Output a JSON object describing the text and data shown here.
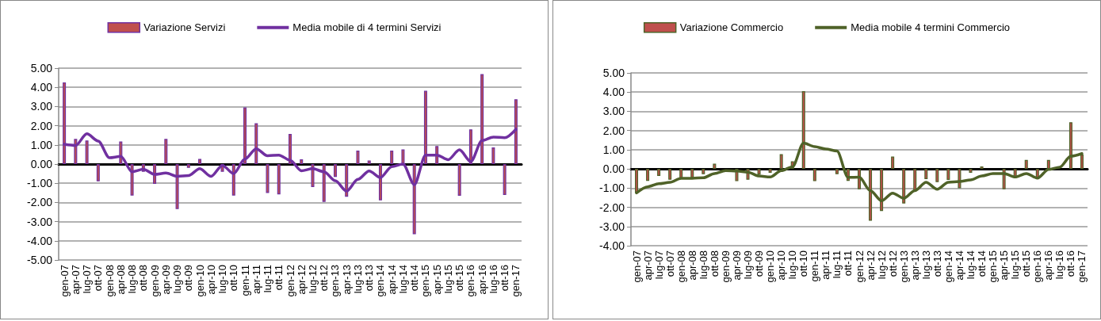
{
  "chart_data": [
    {
      "type": "bar",
      "categories": [
        "gen-07",
        "apr-07",
        "lug-07",
        "ott-07",
        "gen-08",
        "apr-08",
        "lug-08",
        "ott-08",
        "gen-09",
        "apr-09",
        "lug-09",
        "ott-09",
        "gen-10",
        "apr-10",
        "lug-10",
        "ott-10",
        "gen-11",
        "apr-11",
        "lug-11",
        "ott-11",
        "gen-12",
        "apr-12",
        "lug-12",
        "ott-12",
        "gen-13",
        "apr-13",
        "lug-13",
        "ott-13",
        "gen-14",
        "apr-14",
        "lug-14",
        "ott-14",
        "gen-15",
        "apr-15",
        "lug-15",
        "ott-15",
        "gen-16",
        "apr-16",
        "lug-16",
        "ott-16",
        "gen-17"
      ],
      "series": [
        {
          "name": "Variazione Servizi",
          "color": "#c0504d",
          "values": [
            4.26,
            1.31,
            1.23,
            -0.9,
            0,
            1.18,
            -1.64,
            -0.4,
            -1.03,
            1.31,
            -2.35,
            -0.2,
            0.27,
            0,
            -0.4,
            -1.64,
            2.95,
            2.13,
            -1.51,
            -1.58,
            1.57,
            0.25,
            -1.2,
            -1.97,
            -0.67,
            -1.7,
            0.7,
            0.19,
            -1.89,
            0.7,
            0.76,
            -3.66,
            3.82,
            0.94,
            0,
            -1.65,
            1.81,
            4.69,
            0.87,
            -1.61,
            3.38
          ]
        },
        {
          "name": "Media mobile di 4 termini Servizi",
          "type": "line",
          "color": "#7030a0",
          "marker": "none",
          "values": [
            1.03,
            0.97,
            1.58,
            1.2,
            0.33,
            0.4,
            -0.4,
            -0.27,
            -0.54,
            -0.47,
            -0.64,
            -0.6,
            -0.24,
            -0.64,
            -0.07,
            -0.5,
            0.27,
            0.8,
            0.43,
            0.47,
            0.2,
            -0.35,
            -0.24,
            -0.4,
            -0.87,
            -1.41,
            -0.8,
            -0.36,
            -0.7,
            -0.13,
            0,
            -1.07,
            0.47,
            0.47,
            0.23,
            0.74,
            0.13,
            1.23,
            1.41,
            1.37,
            1.81
          ]
        }
      ],
      "ylim": [
        -5,
        5
      ],
      "yticks": [
        {
          "value": -5,
          "label": "-5.00"
        },
        {
          "value": -4,
          "label": "-4.00"
        },
        {
          "value": -3,
          "label": "-3.00"
        },
        {
          "value": -2,
          "label": "-2.00"
        },
        {
          "value": -1,
          "label": "-1.00"
        },
        {
          "value": 0,
          "label": "0.00"
        },
        {
          "value": 1,
          "label": "1.00"
        },
        {
          "value": 2,
          "label": "2.00"
        },
        {
          "value": 3,
          "label": "3.00"
        },
        {
          "value": 4,
          "label": "4.00"
        },
        {
          "value": 5,
          "label": "5.00"
        }
      ],
      "grid": "y",
      "legend": "top"
    },
    {
      "type": "bar",
      "categories": [
        "gen-07",
        "apr-07",
        "lug-07",
        "ott-07",
        "gen-08",
        "apr-08",
        "lug-08",
        "ott-08",
        "gen-09",
        "apr-09",
        "lug-09",
        "ott-09",
        "gen-10",
        "apr-10",
        "lug-10",
        "ott-10",
        "gen-11",
        "apr-11",
        "lug-11",
        "ott-11",
        "gen-12",
        "apr-12",
        "lug-12",
        "ott-12",
        "gen-13",
        "apr-13",
        "lug-13",
        "ott-13",
        "gen-14",
        "apr-14",
        "lug-14",
        "ott-14",
        "gen-15",
        "apr-15",
        "lug-15",
        "ott-15",
        "gen-16",
        "apr-16",
        "lug-16",
        "ott-16",
        "gen-17"
      ],
      "series": [
        {
          "name": "Variazione Commercio",
          "color": "#c0504d",
          "values": [
            -1.25,
            -0.62,
            -0.37,
            -0.56,
            -0.49,
            -0.46,
            -0.27,
            0.27,
            0,
            -0.64,
            -0.56,
            -0.29,
            -0.2,
            0.77,
            0.4,
            4.05,
            -0.64,
            0,
            -0.27,
            -0.62,
            -1.06,
            -2.7,
            -2.19,
            0.64,
            -1.8,
            -1.13,
            -0.53,
            -0.69,
            -0.57,
            -1.01,
            -0.2,
            0.13,
            0,
            -1.06,
            -0.44,
            0.47,
            -0.5,
            0.47,
            0,
            2.43,
            0.75
          ]
        },
        {
          "name": "Media mobile 4 termini Commercio",
          "type": "line",
          "color": "#4f6228",
          "marker": "none",
          "values": [
            -1.25,
            -0.93,
            -0.77,
            -0.7,
            -0.49,
            -0.49,
            -0.46,
            -0.24,
            -0.09,
            -0.11,
            -0.17,
            -0.37,
            -0.42,
            -0.09,
            0.11,
            1.35,
            1.16,
            1.04,
            0.93,
            -0.44,
            -0.43,
            -1.13,
            -1.66,
            -1.26,
            -1.53,
            -1.13,
            -0.7,
            -1.06,
            -0.7,
            -0.66,
            -0.57,
            -0.37,
            -0.24,
            -0.24,
            -0.42,
            -0.24,
            -0.48,
            -0.03,
            0.09,
            0.66,
            0.8
          ]
        }
      ],
      "ylim": [
        -4,
        5
      ],
      "yticks": [
        {
          "value": -4,
          "label": "-4.00"
        },
        {
          "value": -3,
          "label": "-3.00"
        },
        {
          "value": -2,
          "label": "-2.00"
        },
        {
          "value": -1,
          "label": "-1.00"
        },
        {
          "value": 0,
          "label": "0.00"
        },
        {
          "value": 1,
          "label": "1.00"
        },
        {
          "value": 2,
          "label": "2.00"
        },
        {
          "value": 3,
          "label": "3.00"
        },
        {
          "value": 4,
          "label": "4.00"
        },
        {
          "value": 5,
          "label": "5.00"
        }
      ],
      "grid": "y",
      "legend": "top"
    }
  ]
}
